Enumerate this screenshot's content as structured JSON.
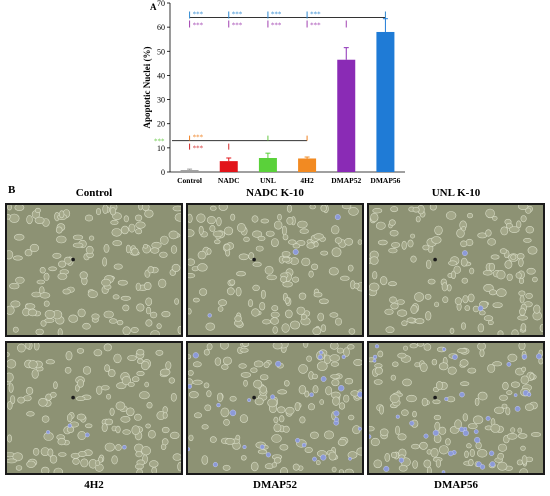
{
  "panel_labels": {
    "a": "A",
    "b": "B"
  },
  "chart_data": {
    "type": "bar",
    "ylabel": "Apoptotic Nuclei (%)",
    "xlabel": "",
    "ylim": [
      0,
      70
    ],
    "yticks": [
      "0",
      "10",
      "20",
      "30",
      "40",
      "50",
      "60",
      "70"
    ],
    "categories": [
      "Control",
      "NADC",
      "UNL",
      "4H2",
      "DMAP52",
      "DMAP56"
    ],
    "values": [
      0.8,
      4.5,
      5.8,
      5.6,
      46.5,
      58.0
    ],
    "errors": [
      0.4,
      1.3,
      2.0,
      0.6,
      5.0,
      5.5
    ],
    "colors": [
      "#9e9e9e",
      "#e2141a",
      "#5ad13a",
      "#f28a22",
      "#8a2bb5",
      "#1f7bd6"
    ],
    "annotations": {
      "top_blue": "***",
      "top_purple": "***",
      "bottom_orange": "***",
      "bottom_red": "***",
      "left_green": "***"
    },
    "annotation_colors": {
      "blue": "#2f88d0",
      "purple": "#a040b0",
      "orange": "#f08020",
      "red": "#d02828",
      "green": "#66c844",
      "line": "#333333"
    }
  },
  "micrographs": [
    {
      "caption": "Control"
    },
    {
      "caption": "NADC K-10"
    },
    {
      "caption": "UNL K-10"
    },
    {
      "caption": "4H2"
    },
    {
      "caption": "DMAP52"
    },
    {
      "caption": "DMAP56"
    }
  ]
}
